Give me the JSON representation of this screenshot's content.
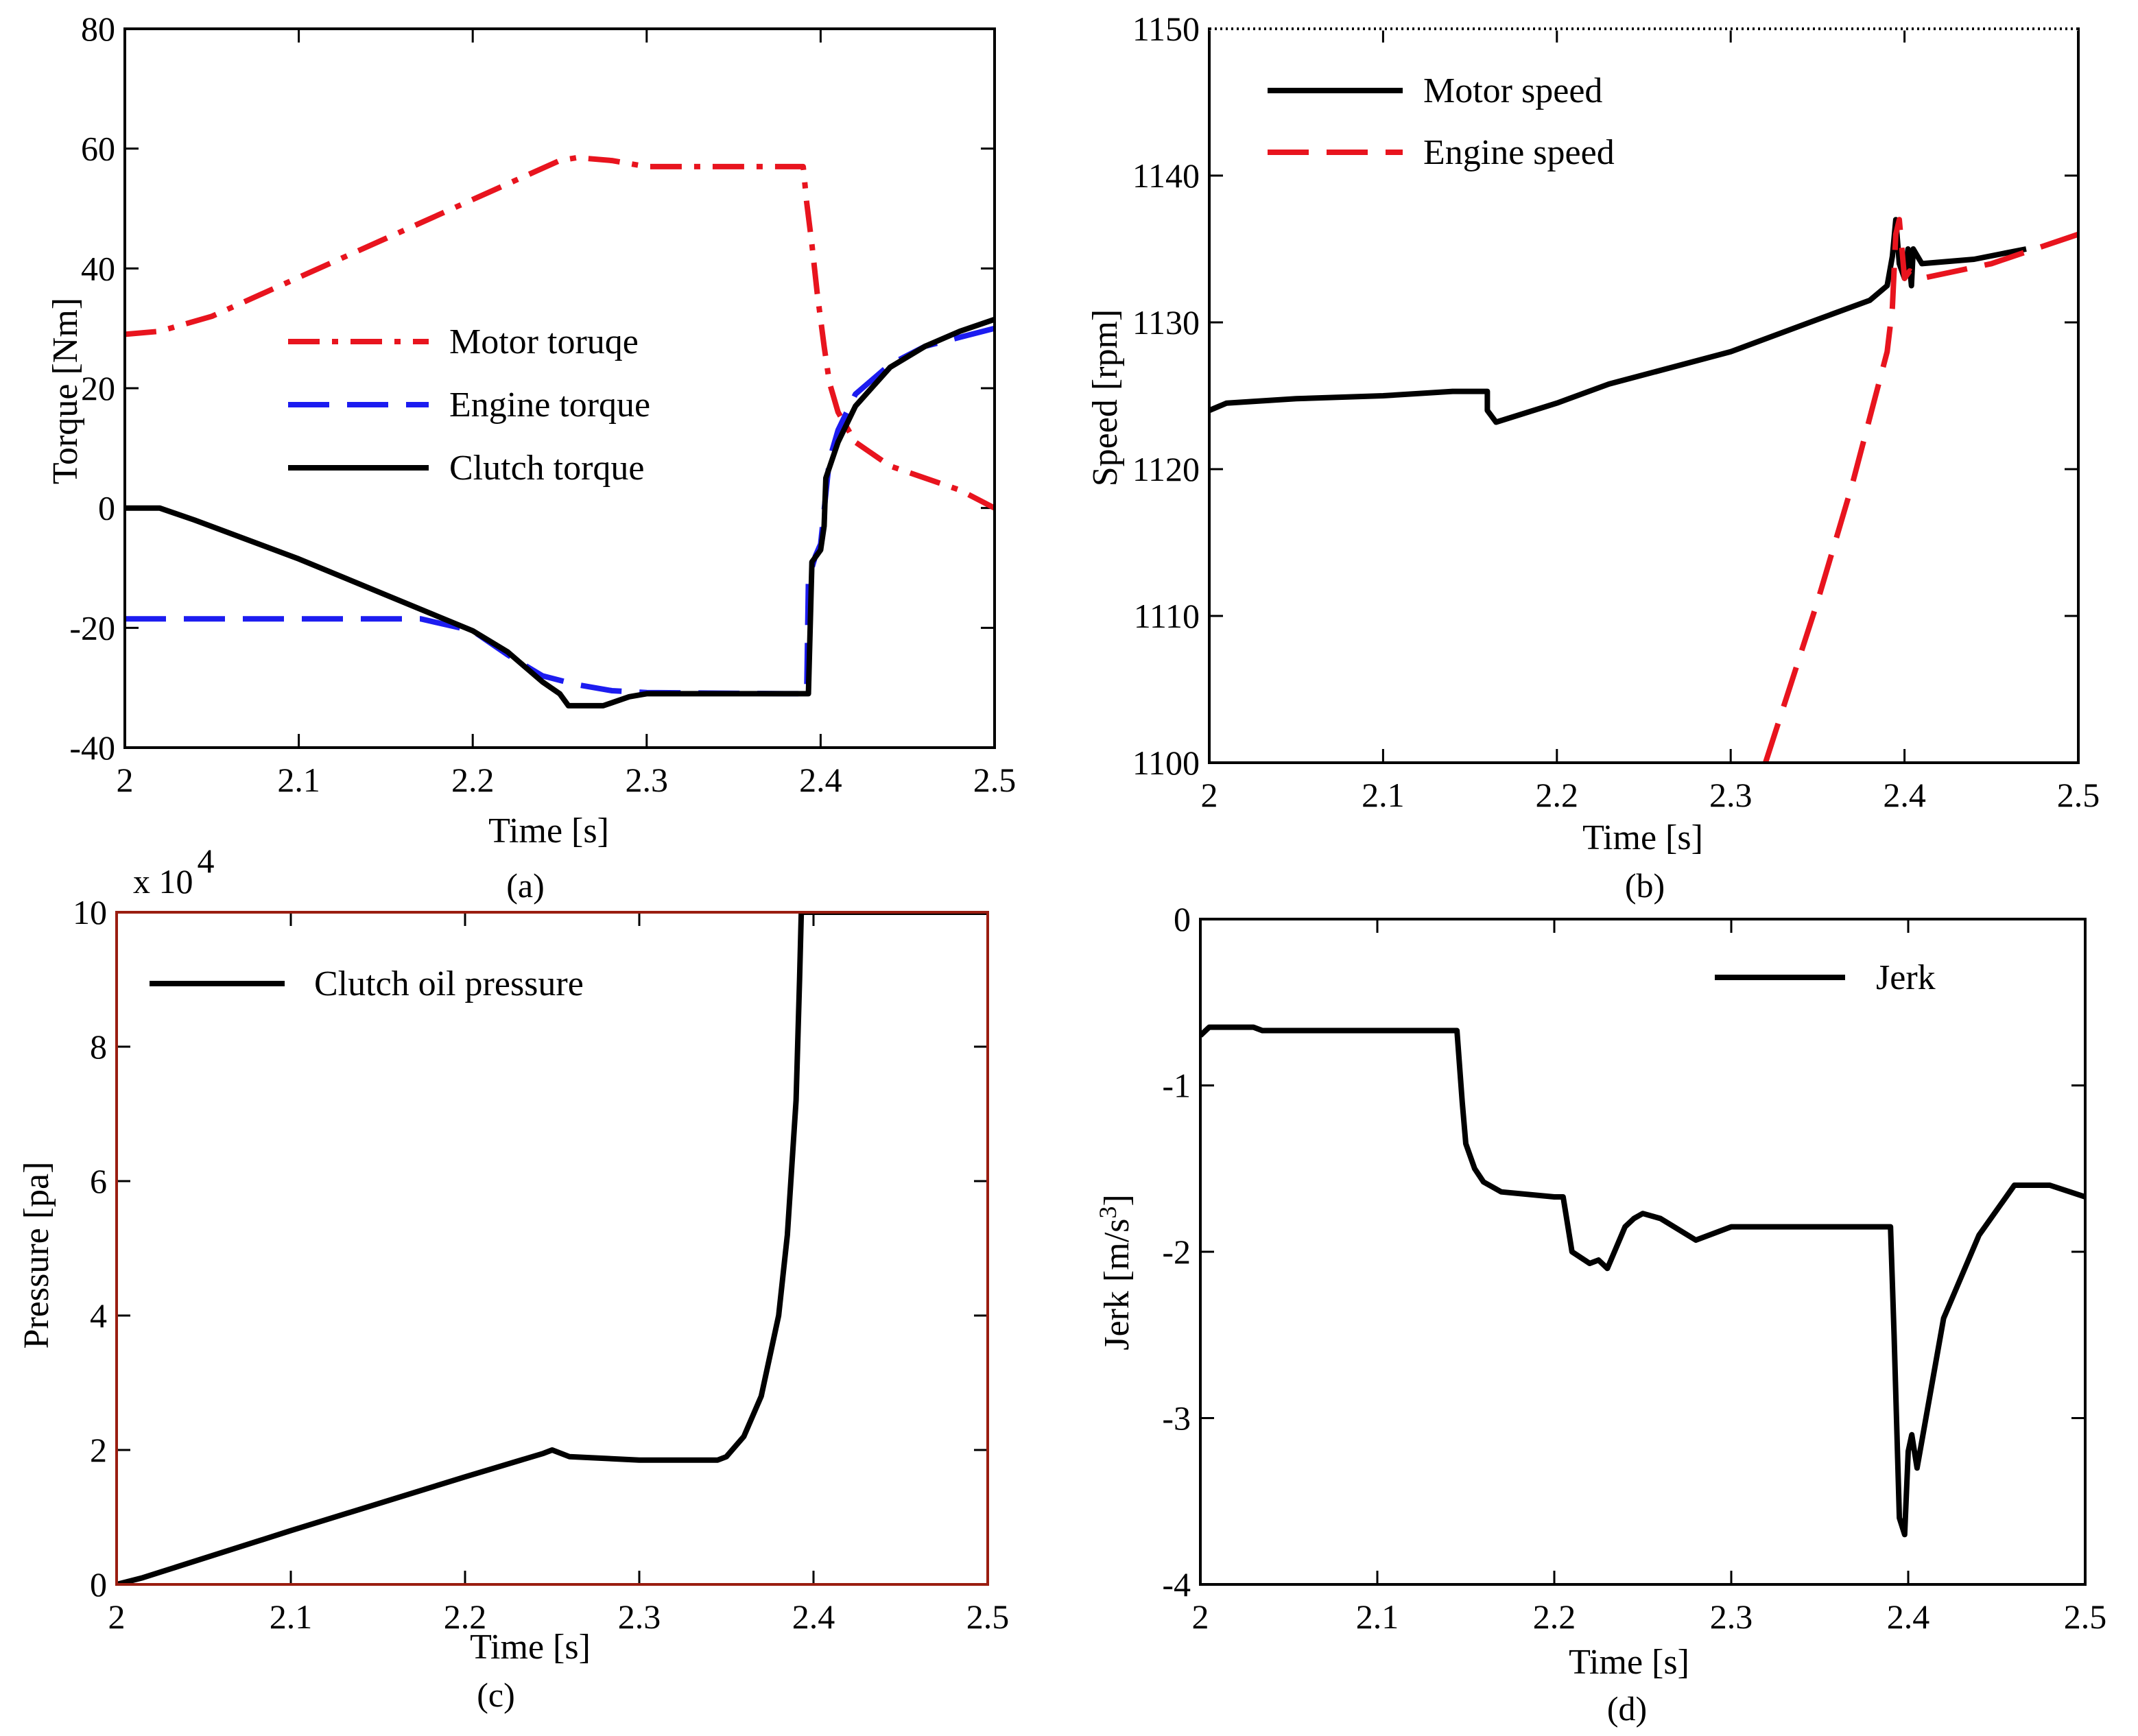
{
  "colors": {
    "black": "#000000",
    "red": "#e8141e",
    "blue": "#1c1cf0",
    "frame_c": "#9a1d10"
  },
  "chart_data": [
    {
      "id": "a",
      "panel_label": "(a)",
      "type": "line",
      "xlabel": "Time [s]",
      "ylabel": "Torque [Nm]",
      "xlim": [
        2,
        2.5
      ],
      "ylim": [
        -40,
        80
      ],
      "x_ticks": [
        "2",
        "2.1",
        "2.2",
        "2.3",
        "2.4",
        "2.5"
      ],
      "y_ticks": [
        "-40",
        "-20",
        "0",
        "20",
        "40",
        "60",
        "80"
      ],
      "legend_position": "center",
      "series": [
        {
          "name": "Motor toruqe",
          "color": "red",
          "style": "dashdot",
          "points": [
            [
              2.0,
              29
            ],
            [
              2.02,
              29.5
            ],
            [
              2.05,
              32
            ],
            [
              2.1,
              38.5
            ],
            [
              2.15,
              45
            ],
            [
              2.2,
              51.5
            ],
            [
              2.25,
              58
            ],
            [
              2.26,
              58.5
            ],
            [
              2.28,
              58
            ],
            [
              2.3,
              57
            ],
            [
              2.35,
              57
            ],
            [
              2.39,
              57
            ],
            [
              2.392,
              51
            ],
            [
              2.395,
              44
            ],
            [
              2.398,
              36
            ],
            [
              2.402,
              27
            ],
            [
              2.405,
              21
            ],
            [
              2.41,
              16
            ],
            [
              2.42,
              11
            ],
            [
              2.44,
              7
            ],
            [
              2.46,
              5
            ],
            [
              2.48,
              3
            ],
            [
              2.5,
              0
            ]
          ]
        },
        {
          "name": "Engine torque",
          "color": "blue",
          "style": "dashed",
          "points": [
            [
              2.0,
              -18.5
            ],
            [
              2.1,
              -18.5
            ],
            [
              2.17,
              -18.5
            ],
            [
              2.2,
              -20.5
            ],
            [
              2.22,
              -24.5
            ],
            [
              2.24,
              -28
            ],
            [
              2.26,
              -29.5
            ],
            [
              2.28,
              -30.5
            ],
            [
              2.3,
              -30.8
            ],
            [
              2.38,
              -31
            ],
            [
              2.392,
              -31
            ],
            [
              2.393,
              -12
            ],
            [
              2.397,
              -8
            ],
            [
              2.4,
              -6
            ],
            [
              2.405,
              8
            ],
            [
              2.41,
              13
            ],
            [
              2.42,
              19
            ],
            [
              2.44,
              24
            ],
            [
              2.46,
              27
            ],
            [
              2.48,
              28.5
            ],
            [
              2.5,
              30
            ]
          ]
        },
        {
          "name": "Clutch torque",
          "color": "black",
          "style": "solid",
          "points": [
            [
              2.0,
              0
            ],
            [
              2.02,
              0
            ],
            [
              2.04,
              -2
            ],
            [
              2.1,
              -8.5
            ],
            [
              2.15,
              -14.5
            ],
            [
              2.2,
              -20.5
            ],
            [
              2.22,
              -24
            ],
            [
              2.24,
              -29
            ],
            [
              2.25,
              -31
            ],
            [
              2.255,
              -33
            ],
            [
              2.275,
              -33
            ],
            [
              2.29,
              -31.5
            ],
            [
              2.3,
              -31
            ],
            [
              2.35,
              -31
            ],
            [
              2.393,
              -31
            ],
            [
              2.395,
              -9
            ],
            [
              2.4,
              -7
            ],
            [
              2.402,
              -3
            ],
            [
              2.403,
              5
            ],
            [
              2.41,
              11
            ],
            [
              2.42,
              17
            ],
            [
              2.44,
              23.5
            ],
            [
              2.46,
              27
            ],
            [
              2.48,
              29.5
            ],
            [
              2.5,
              31.5
            ]
          ]
        }
      ]
    },
    {
      "id": "b",
      "panel_label": "(b)",
      "type": "line",
      "xlabel": "Time [s]",
      "ylabel": "Speed [rpm]",
      "xlim": [
        2,
        2.5
      ],
      "ylim": [
        1100,
        1150
      ],
      "x_ticks": [
        "2",
        "2.1",
        "2.2",
        "2.3",
        "2.4",
        "2.5"
      ],
      "y_ticks": [
        "1100",
        "1110",
        "1120",
        "1130",
        "1140",
        "1150"
      ],
      "legend_position": "top-left",
      "series": [
        {
          "name": "Motor speed",
          "color": "black",
          "style": "solid",
          "points": [
            [
              2.0,
              1124
            ],
            [
              2.01,
              1124.5
            ],
            [
              2.05,
              1124.8
            ],
            [
              2.1,
              1125
            ],
            [
              2.14,
              1125.3
            ],
            [
              2.16,
              1125.3
            ],
            [
              2.16,
              1124
            ],
            [
              2.165,
              1123.2
            ],
            [
              2.2,
              1124.5
            ],
            [
              2.23,
              1125.8
            ],
            [
              2.3,
              1128
            ],
            [
              2.35,
              1130.2
            ],
            [
              2.38,
              1131.5
            ],
            [
              2.39,
              1132.5
            ],
            [
              2.393,
              1134.5
            ],
            [
              2.395,
              1137
            ],
            [
              2.397,
              1134
            ],
            [
              2.4,
              1133
            ],
            [
              2.402,
              1135
            ],
            [
              2.404,
              1132.5
            ],
            [
              2.405,
              1135
            ],
            [
              2.41,
              1134
            ],
            [
              2.44,
              1134.3
            ],
            [
              2.47,
              1135
            ]
          ]
        },
        {
          "name": "Engine speed",
          "color": "red",
          "style": "dashed",
          "points": [
            [
              2.32,
              1100
            ],
            [
              2.35,
              1111
            ],
            [
              2.37,
              1119
            ],
            [
              2.39,
              1128
            ],
            [
              2.393,
              1131
            ],
            [
              2.395,
              1136
            ],
            [
              2.397,
              1137
            ],
            [
              2.4,
              1133
            ],
            [
              2.403,
              1133.5
            ],
            [
              2.41,
              1133
            ],
            [
              2.45,
              1134
            ],
            [
              2.5,
              1136
            ]
          ]
        }
      ]
    },
    {
      "id": "c",
      "panel_label": "(c)",
      "type": "line",
      "xlabel": "Time [s]",
      "ylabel": "Pressure [pa]",
      "exponent_base": "x 10",
      "exponent_power": "4",
      "xlim": [
        2,
        2.5
      ],
      "ylim": [
        0,
        10
      ],
      "x_ticks": [
        "2",
        "2.1",
        "2.2",
        "2.3",
        "2.4",
        "2.5"
      ],
      "y_ticks": [
        "0",
        "2",
        "4",
        "6",
        "8",
        "10"
      ],
      "legend_position": "top-left",
      "series": [
        {
          "name": "Clutch oil pressure",
          "color": "black",
          "style": "solid",
          "points": [
            [
              2.0,
              0
            ],
            [
              2.015,
              0.1
            ],
            [
              2.1,
              0.8
            ],
            [
              2.2,
              1.6
            ],
            [
              2.245,
              1.95
            ],
            [
              2.25,
              2.0
            ],
            [
              2.26,
              1.9
            ],
            [
              2.3,
              1.85
            ],
            [
              2.345,
              1.85
            ],
            [
              2.35,
              1.9
            ],
            [
              2.36,
              2.2
            ],
            [
              2.37,
              2.8
            ],
            [
              2.38,
              4.0
            ],
            [
              2.385,
              5.2
            ],
            [
              2.39,
              7.2
            ],
            [
              2.392,
              9.0
            ],
            [
              2.393,
              10
            ],
            [
              2.5,
              10
            ]
          ]
        }
      ]
    },
    {
      "id": "d",
      "panel_label": "(d)",
      "type": "line",
      "xlabel": "Time [s]",
      "ylabel": "Jerk [m/s",
      "ylabel_sup": "3",
      "ylabel_end": "]",
      "xlim": [
        2,
        2.5
      ],
      "ylim": [
        -4,
        0
      ],
      "x_ticks": [
        "2",
        "2.1",
        "2.2",
        "2.3",
        "2.4",
        "2.5"
      ],
      "y_ticks": [
        "-4",
        "-3",
        "-2",
        "-1",
        "0"
      ],
      "legend_position": "top-right",
      "series": [
        {
          "name": "Jerk",
          "color": "black",
          "style": "solid",
          "points": [
            [
              2.0,
              -0.7
            ],
            [
              2.005,
              -0.65
            ],
            [
              2.03,
              -0.65
            ],
            [
              2.035,
              -0.67
            ],
            [
              2.14,
              -0.67
            ],
            [
              2.145,
              -0.67
            ],
            [
              2.148,
              -1.1
            ],
            [
              2.15,
              -1.35
            ],
            [
              2.155,
              -1.5
            ],
            [
              2.16,
              -1.58
            ],
            [
              2.17,
              -1.64
            ],
            [
              2.2,
              -1.67
            ],
            [
              2.205,
              -1.67
            ],
            [
              2.21,
              -2.0
            ],
            [
              2.22,
              -2.07
            ],
            [
              2.225,
              -2.05
            ],
            [
              2.23,
              -2.1
            ],
            [
              2.24,
              -1.85
            ],
            [
              2.245,
              -1.8
            ],
            [
              2.25,
              -1.77
            ],
            [
              2.26,
              -1.8
            ],
            [
              2.28,
              -1.93
            ],
            [
              2.3,
              -1.85
            ],
            [
              2.39,
              -1.85
            ],
            [
              2.392,
              -2.5
            ],
            [
              2.395,
              -3.6
            ],
            [
              2.398,
              -3.7
            ],
            [
              2.4,
              -3.2
            ],
            [
              2.402,
              -3.1
            ],
            [
              2.405,
              -3.3
            ],
            [
              2.41,
              -3.0
            ],
            [
              2.42,
              -2.4
            ],
            [
              2.44,
              -1.9
            ],
            [
              2.46,
              -1.6
            ],
            [
              2.48,
              -1.6
            ],
            [
              2.5,
              -1.67
            ]
          ]
        }
      ]
    }
  ]
}
